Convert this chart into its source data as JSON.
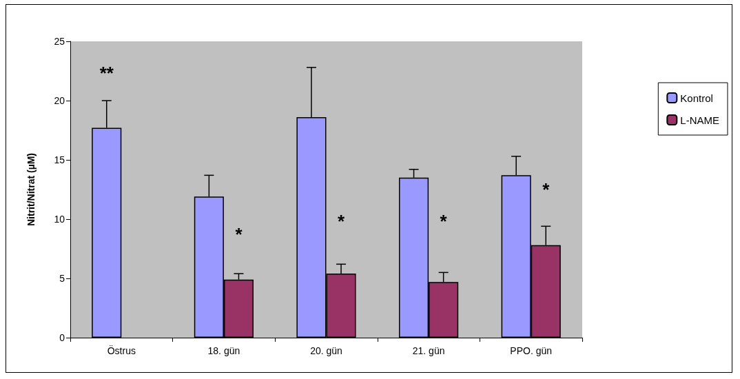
{
  "chart_data": {
    "type": "bar",
    "ylabel": "Nitrit/Nitrat (µM)",
    "categories": [
      "Östrus",
      "18. gün",
      "20. gün",
      "21. gün",
      "PPO. gün"
    ],
    "series": [
      {
        "name": "Kontrol",
        "color": "#9999ff",
        "values": [
          17.7,
          11.9,
          18.6,
          13.5,
          13.7
        ],
        "errors": [
          2.3,
          1.8,
          4.2,
          0.7,
          1.6
        ]
      },
      {
        "name": "L-NAME",
        "color": "#993366",
        "values": [
          null,
          4.9,
          5.4,
          4.7,
          7.8
        ],
        "errors": [
          null,
          0.5,
          0.8,
          0.8,
          1.6
        ]
      }
    ],
    "ylim": [
      0,
      25
    ],
    "yticks": [
      0,
      5,
      10,
      15,
      20,
      25
    ],
    "grid": false,
    "legend": "right",
    "annotations": [
      "**",
      {
        "text": "*",
        "x": "18. gün",
        "y": 8.7
      },
      {
        "text": "*",
        "x": "20. gün",
        "y": 9.8
      },
      {
        "text": "*",
        "x": "21. gün",
        "y": 9.8
      },
      {
        "text": "*",
        "x": "PPO. gün",
        "y": 12.5
      }
    ]
  }
}
